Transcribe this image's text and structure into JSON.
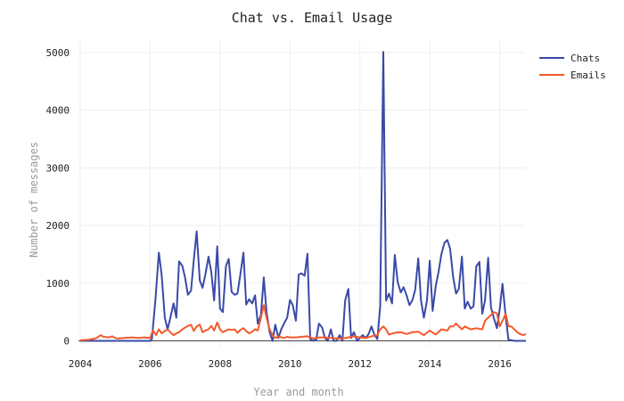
{
  "chart_data": {
    "type": "line",
    "title": "Chat vs. Email Usage",
    "xlabel": "Year and month",
    "ylabel": "Number of messages",
    "xlim": [
      2003.95,
      2016.75
    ],
    "ylim": [
      -100,
      5200
    ],
    "x_ticks": [
      2004,
      2006,
      2008,
      2010,
      2012,
      2014,
      2016
    ],
    "x_tick_labels": [
      "2004",
      "2006",
      "2008",
      "2010",
      "2012",
      "2014",
      "2016"
    ],
    "y_ticks": [
      0,
      1000,
      2000,
      3000,
      4000,
      5000
    ],
    "y_tick_labels": [
      "0",
      "1000",
      "2000",
      "3000",
      "4000",
      "5000"
    ],
    "grid": true,
    "legend_position": "top-right",
    "series": [
      {
        "name": "Chats",
        "color": "#3a4aa8",
        "points": [
          [
            2004.0,
            0
          ],
          [
            2004.5,
            0
          ],
          [
            2005.0,
            0
          ],
          [
            2005.5,
            0
          ],
          [
            2006.0,
            0
          ],
          [
            2006.05,
            30
          ],
          [
            2006.15,
            700
          ],
          [
            2006.25,
            1530
          ],
          [
            2006.33,
            1150
          ],
          [
            2006.42,
            400
          ],
          [
            2006.5,
            200
          ],
          [
            2006.58,
            400
          ],
          [
            2006.67,
            650
          ],
          [
            2006.75,
            400
          ],
          [
            2006.83,
            1380
          ],
          [
            2006.92,
            1300
          ],
          [
            2007.0,
            1100
          ],
          [
            2007.08,
            800
          ],
          [
            2007.17,
            870
          ],
          [
            2007.25,
            1400
          ],
          [
            2007.33,
            1900
          ],
          [
            2007.42,
            1050
          ],
          [
            2007.5,
            920
          ],
          [
            2007.58,
            1150
          ],
          [
            2007.67,
            1460
          ],
          [
            2007.75,
            1200
          ],
          [
            2007.83,
            700
          ],
          [
            2007.92,
            1640
          ],
          [
            2008.0,
            560
          ],
          [
            2008.08,
            500
          ],
          [
            2008.17,
            1300
          ],
          [
            2008.25,
            1420
          ],
          [
            2008.33,
            850
          ],
          [
            2008.42,
            800
          ],
          [
            2008.5,
            820
          ],
          [
            2008.58,
            1150
          ],
          [
            2008.67,
            1530
          ],
          [
            2008.75,
            630
          ],
          [
            2008.83,
            720
          ],
          [
            2008.92,
            650
          ],
          [
            2009.0,
            790
          ],
          [
            2009.08,
            300
          ],
          [
            2009.17,
            450
          ],
          [
            2009.25,
            1100
          ],
          [
            2009.33,
            500
          ],
          [
            2009.42,
            150
          ],
          [
            2009.5,
            0
          ],
          [
            2009.58,
            280
          ],
          [
            2009.67,
            50
          ],
          [
            2009.75,
            200
          ],
          [
            2009.83,
            300
          ],
          [
            2009.92,
            400
          ],
          [
            2010.0,
            710
          ],
          [
            2010.08,
            620
          ],
          [
            2010.17,
            350
          ],
          [
            2010.25,
            1150
          ],
          [
            2010.33,
            1170
          ],
          [
            2010.42,
            1130
          ],
          [
            2010.5,
            1510
          ],
          [
            2010.58,
            30
          ],
          [
            2010.67,
            0
          ],
          [
            2010.75,
            20
          ],
          [
            2010.83,
            300
          ],
          [
            2010.92,
            230
          ],
          [
            2011.0,
            50
          ],
          [
            2011.08,
            0
          ],
          [
            2011.17,
            200
          ],
          [
            2011.25,
            0
          ],
          [
            2011.33,
            0
          ],
          [
            2011.42,
            100
          ],
          [
            2011.5,
            0
          ],
          [
            2011.58,
            700
          ],
          [
            2011.67,
            900
          ],
          [
            2011.75,
            50
          ],
          [
            2011.83,
            150
          ],
          [
            2011.92,
            0
          ],
          [
            2012.0,
            50
          ],
          [
            2012.08,
            100
          ],
          [
            2012.17,
            50
          ],
          [
            2012.25,
            120
          ],
          [
            2012.33,
            250
          ],
          [
            2012.42,
            100
          ],
          [
            2012.5,
            30
          ],
          [
            2012.58,
            600
          ],
          [
            2012.67,
            5010
          ],
          [
            2012.75,
            700
          ],
          [
            2012.83,
            820
          ],
          [
            2012.92,
            650
          ],
          [
            2013.0,
            1490
          ],
          [
            2013.08,
            1020
          ],
          [
            2013.17,
            840
          ],
          [
            2013.25,
            930
          ],
          [
            2013.33,
            800
          ],
          [
            2013.42,
            620
          ],
          [
            2013.5,
            700
          ],
          [
            2013.58,
            880
          ],
          [
            2013.67,
            1430
          ],
          [
            2013.75,
            700
          ],
          [
            2013.83,
            400
          ],
          [
            2013.92,
            700
          ],
          [
            2014.0,
            1390
          ],
          [
            2014.08,
            520
          ],
          [
            2014.17,
            950
          ],
          [
            2014.25,
            1200
          ],
          [
            2014.33,
            1500
          ],
          [
            2014.42,
            1700
          ],
          [
            2014.5,
            1750
          ],
          [
            2014.58,
            1600
          ],
          [
            2014.67,
            1100
          ],
          [
            2014.75,
            820
          ],
          [
            2014.83,
            900
          ],
          [
            2014.92,
            1460
          ],
          [
            2015.0,
            560
          ],
          [
            2015.08,
            680
          ],
          [
            2015.17,
            560
          ],
          [
            2015.25,
            600
          ],
          [
            2015.33,
            1290
          ],
          [
            2015.42,
            1370
          ],
          [
            2015.5,
            470
          ],
          [
            2015.58,
            700
          ],
          [
            2015.67,
            1440
          ],
          [
            2015.75,
            580
          ],
          [
            2015.83,
            400
          ],
          [
            2015.92,
            220
          ],
          [
            2016.0,
            550
          ],
          [
            2016.08,
            990
          ],
          [
            2016.17,
            420
          ],
          [
            2016.25,
            20
          ],
          [
            2016.42,
            0
          ],
          [
            2016.75,
            0
          ]
        ]
      },
      {
        "name": "Emails",
        "color": "#f4592d",
        "points": [
          [
            2004.0,
            10
          ],
          [
            2004.25,
            20
          ],
          [
            2004.42,
            40
          ],
          [
            2004.5,
            60
          ],
          [
            2004.58,
            100
          ],
          [
            2004.67,
            70
          ],
          [
            2004.83,
            60
          ],
          [
            2004.92,
            80
          ],
          [
            2005.0,
            50
          ],
          [
            2005.08,
            40
          ],
          [
            2005.25,
            50
          ],
          [
            2005.5,
            60
          ],
          [
            2005.67,
            50
          ],
          [
            2005.83,
            60
          ],
          [
            2006.0,
            50
          ],
          [
            2006.08,
            180
          ],
          [
            2006.17,
            100
          ],
          [
            2006.25,
            200
          ],
          [
            2006.33,
            130
          ],
          [
            2006.42,
            170
          ],
          [
            2006.5,
            200
          ],
          [
            2006.58,
            150
          ],
          [
            2006.67,
            100
          ],
          [
            2006.75,
            130
          ],
          [
            2006.83,
            150
          ],
          [
            2006.92,
            200
          ],
          [
            2007.0,
            230
          ],
          [
            2007.08,
            260
          ],
          [
            2007.17,
            280
          ],
          [
            2007.25,
            170
          ],
          [
            2007.33,
            250
          ],
          [
            2007.42,
            280
          ],
          [
            2007.5,
            150
          ],
          [
            2007.58,
            180
          ],
          [
            2007.67,
            200
          ],
          [
            2007.75,
            260
          ],
          [
            2007.83,
            180
          ],
          [
            2007.92,
            320
          ],
          [
            2008.0,
            200
          ],
          [
            2008.08,
            150
          ],
          [
            2008.17,
            180
          ],
          [
            2008.25,
            200
          ],
          [
            2008.33,
            190
          ],
          [
            2008.42,
            200
          ],
          [
            2008.5,
            140
          ],
          [
            2008.58,
            190
          ],
          [
            2008.67,
            220
          ],
          [
            2008.75,
            170
          ],
          [
            2008.83,
            130
          ],
          [
            2008.92,
            160
          ],
          [
            2009.0,
            200
          ],
          [
            2009.08,
            180
          ],
          [
            2009.17,
            400
          ],
          [
            2009.25,
            620
          ],
          [
            2009.33,
            400
          ],
          [
            2009.42,
            200
          ],
          [
            2009.5,
            100
          ],
          [
            2009.58,
            50
          ],
          [
            2009.67,
            80
          ],
          [
            2009.75,
            60
          ],
          [
            2009.83,
            50
          ],
          [
            2009.92,
            70
          ],
          [
            2010.0,
            60
          ],
          [
            2010.17,
            60
          ],
          [
            2010.33,
            70
          ],
          [
            2010.5,
            80
          ],
          [
            2010.67,
            40
          ],
          [
            2010.83,
            60
          ],
          [
            2011.0,
            60
          ],
          [
            2011.17,
            50
          ],
          [
            2011.33,
            40
          ],
          [
            2011.5,
            40
          ],
          [
            2011.67,
            60
          ],
          [
            2011.83,
            80
          ],
          [
            2012.0,
            60
          ],
          [
            2012.17,
            50
          ],
          [
            2012.33,
            80
          ],
          [
            2012.5,
            100
          ],
          [
            2012.58,
            200
          ],
          [
            2012.67,
            250
          ],
          [
            2012.75,
            200
          ],
          [
            2012.83,
            110
          ],
          [
            2013.0,
            140
          ],
          [
            2013.17,
            150
          ],
          [
            2013.33,
            120
          ],
          [
            2013.5,
            150
          ],
          [
            2013.67,
            160
          ],
          [
            2013.83,
            100
          ],
          [
            2014.0,
            180
          ],
          [
            2014.17,
            110
          ],
          [
            2014.33,
            200
          ],
          [
            2014.5,
            180
          ],
          [
            2014.58,
            250
          ],
          [
            2014.67,
            250
          ],
          [
            2014.75,
            300
          ],
          [
            2014.92,
            200
          ],
          [
            2015.0,
            250
          ],
          [
            2015.17,
            200
          ],
          [
            2015.33,
            220
          ],
          [
            2015.5,
            200
          ],
          [
            2015.58,
            350
          ],
          [
            2015.67,
            400
          ],
          [
            2015.75,
            450
          ],
          [
            2015.83,
            500
          ],
          [
            2015.92,
            480
          ],
          [
            2016.0,
            250
          ],
          [
            2016.08,
            350
          ],
          [
            2016.17,
            470
          ],
          [
            2016.25,
            250
          ],
          [
            2016.33,
            250
          ],
          [
            2016.42,
            200
          ],
          [
            2016.5,
            150
          ],
          [
            2016.58,
            120
          ],
          [
            2016.67,
            100
          ],
          [
            2016.75,
            120
          ]
        ]
      }
    ]
  }
}
